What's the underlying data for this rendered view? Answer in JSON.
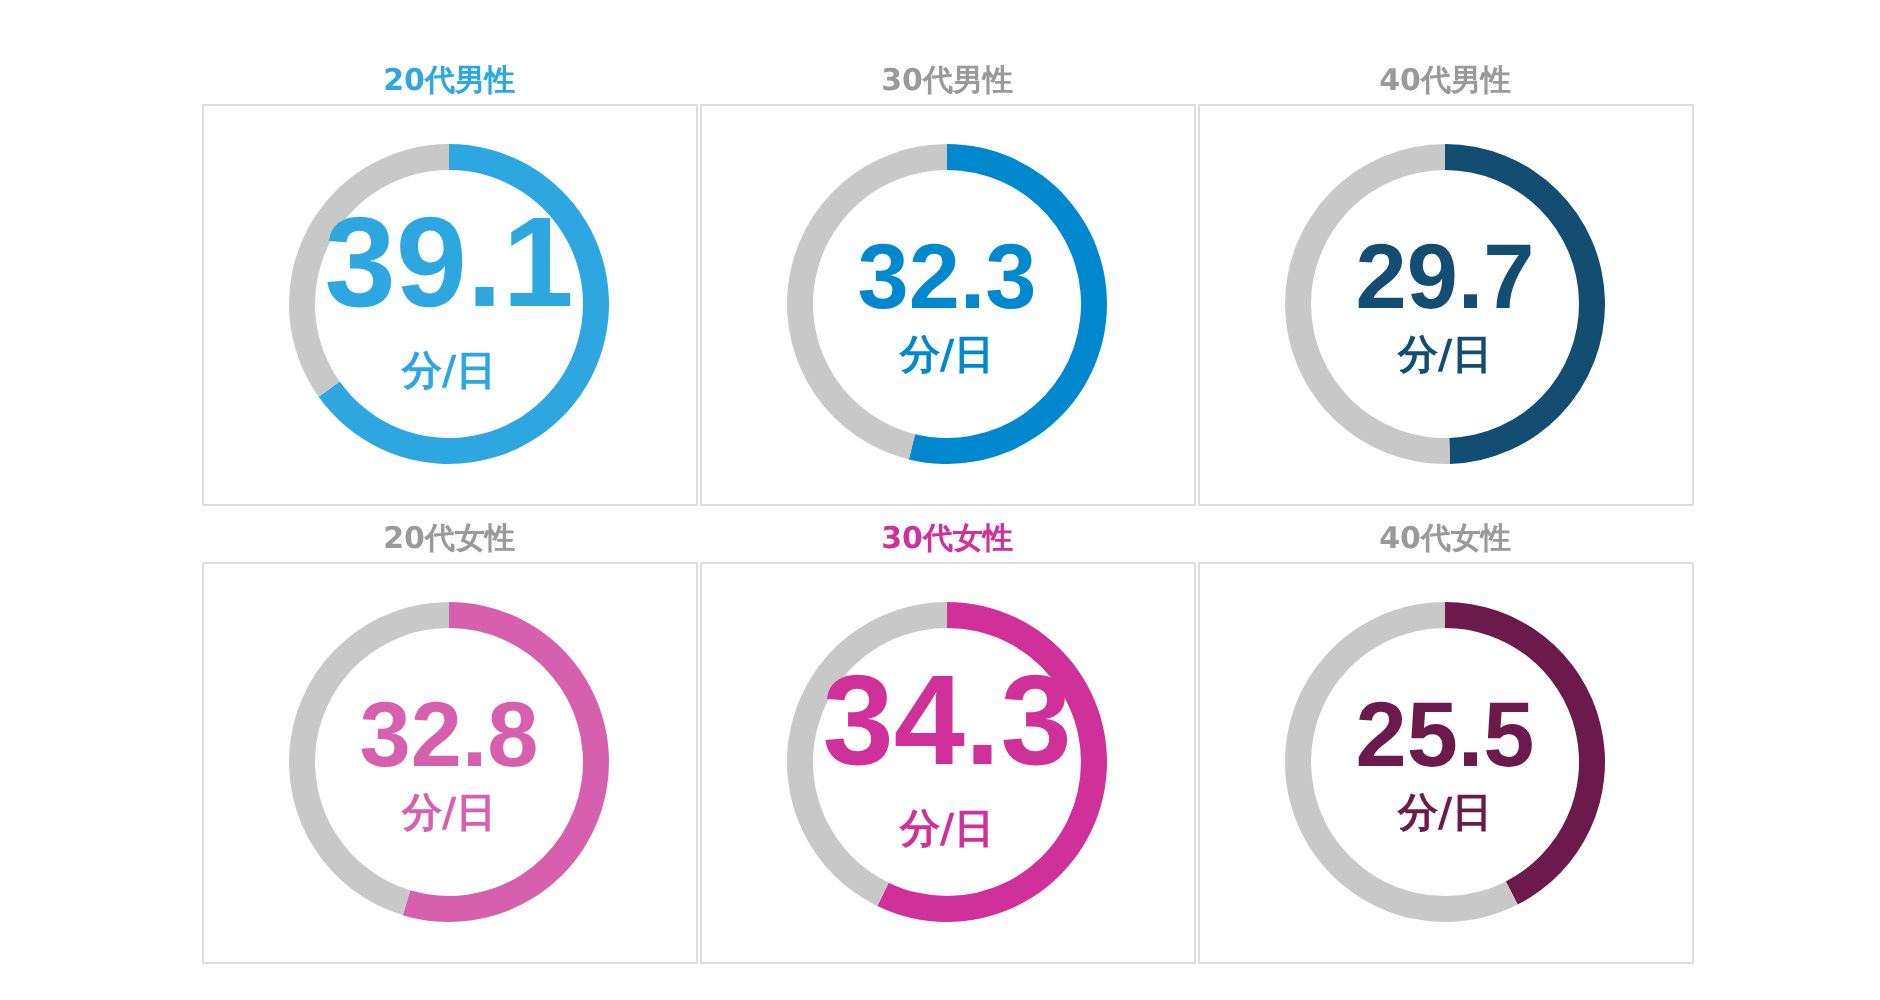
{
  "chart_data": [
    {
      "type": "donut",
      "title": "20代男性",
      "categories": [
        null,
        null
      ],
      "values": [
        39.1,
        20.9
      ],
      "colors": [
        "#2ea7e0",
        "#c8c8c8"
      ],
      "value_labels": [
        "39.1",
        null
      ],
      "annotations": [
        "分/日"
      ]
    },
    {
      "type": "donut",
      "title": "30代男性",
      "categories": [
        null,
        null
      ],
      "values": [
        32.3,
        27.7
      ],
      "colors": [
        "#0088cf",
        "#c8c8c8"
      ],
      "value_labels": [
        "32.3",
        null
      ],
      "annotations": [
        "分/日"
      ]
    },
    {
      "type": "donut",
      "title": "40代男性",
      "categories": [
        null,
        null
      ],
      "values": [
        29.7,
        30.3
      ],
      "colors": [
        "#134d71",
        "#c8c8c8"
      ],
      "value_labels": [
        "29.7",
        null
      ],
      "annotations": [
        "分/日"
      ]
    },
    {
      "type": "donut",
      "title": "20代女性",
      "categories": [
        null,
        null
      ],
      "values": [
        32.8,
        27.2
      ],
      "colors": [
        "#d660ad",
        "#c8c8c8"
      ],
      "value_labels": [
        "32.8",
        null
      ],
      "annotations": [
        "分/日"
      ]
    },
    {
      "type": "donut",
      "title": "30代女性",
      "categories": [
        null,
        null
      ],
      "values": [
        34.3,
        25.7
      ],
      "colors": [
        "#d0309a",
        "#c8c8c8"
      ],
      "value_labels": [
        "34.3",
        null
      ],
      "annotations": [
        "分/日"
      ]
    },
    {
      "type": "donut",
      "title": "40代女性",
      "categories": [
        null,
        null
      ],
      "values": [
        25.5,
        34.5
      ],
      "colors": [
        "#6c1a4c",
        "#c8c8c8"
      ],
      "value_labels": [
        "25.5",
        null
      ],
      "annotations": [
        "分/日"
      ]
    }
  ]
}
